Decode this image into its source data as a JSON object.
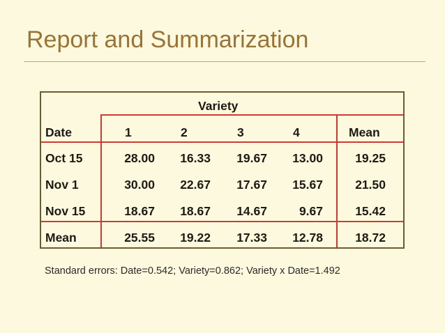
{
  "slide": {
    "title": "Report and Summarization",
    "footnote": "Standard errors:  Date=0.542; Variety=0.862; Variety x Date=1.492"
  },
  "table": {
    "group_header": "Variety",
    "columns": [
      "Date",
      "1",
      "2",
      "3",
      "4",
      "Mean"
    ],
    "rows": [
      {
        "label": "Oct 15",
        "values": [
          "28.00",
          "16.33",
          "19.67",
          "13.00"
        ],
        "mean": "19.25"
      },
      {
        "label": "Nov 1",
        "values": [
          "30.00",
          "22.67",
          "17.67",
          "15.67"
        ],
        "mean": "21.50"
      },
      {
        "label": "Nov 15",
        "values": [
          "18.67",
          "18.67",
          "14.67",
          "9.67"
        ],
        "mean": "15.42"
      },
      {
        "label": "Mean",
        "values": [
          "25.55",
          "19.22",
          "17.33",
          "12.78"
        ],
        "mean": "18.72"
      }
    ]
  },
  "colors": {
    "title": "#9a7336",
    "rule_lines": "#cc3a33",
    "border": "#6b5b2e",
    "background": "#fdf9df"
  }
}
